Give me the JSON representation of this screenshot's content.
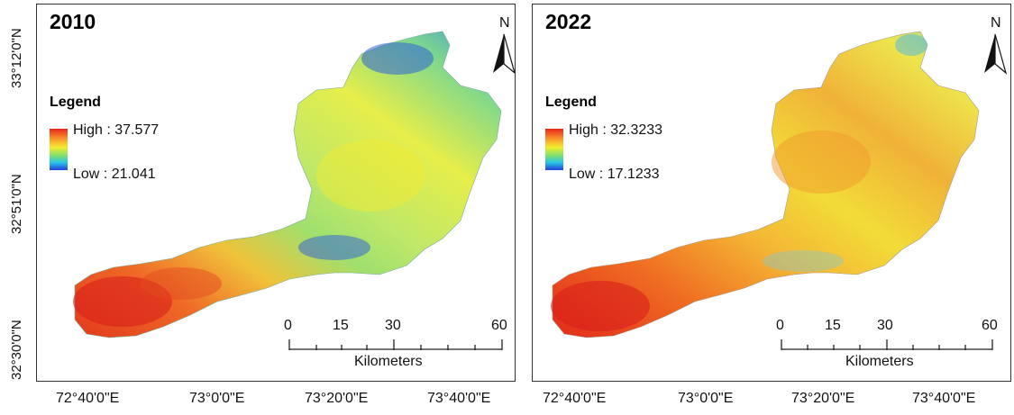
{
  "panels": [
    {
      "year": "2010",
      "legend": {
        "title": "Legend",
        "high": "High : 37.577",
        "low": "Low : 21.041"
      }
    },
    {
      "year": "2022",
      "legend": {
        "title": "Legend",
        "high": "High : 32.3233",
        "low": "Low : 17.1233"
      }
    }
  ],
  "north_label": "N",
  "scalebar": {
    "ticks": [
      "0",
      "15",
      "30",
      "60"
    ],
    "unit": "Kilometers"
  },
  "x_axis_labels": [
    "72°40'0\"E",
    "73°0'0\"E",
    "73°20'0\"E",
    "73°40'0\"E"
  ],
  "y_axis_labels": [
    "33°12'0\"N",
    "32°51'0\"N",
    "32°30'0\"N"
  ],
  "colors": {
    "high": "#e8261b",
    "mid": "#f4ec2e",
    "low": "#2341d8"
  }
}
